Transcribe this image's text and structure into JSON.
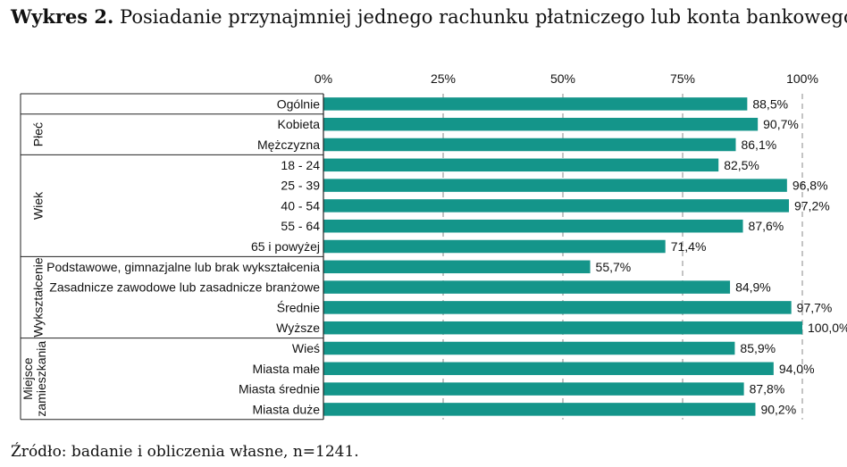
{
  "figure": {
    "title_prefix": "Wykres 2.",
    "title_text": "Posiadanie przynajmniej jednego rachunku płatniczego lub konta bankowego",
    "source": "Źródło: badanie i obliczenia własne, n=1241."
  },
  "colors": {
    "bar": "#14958A",
    "grid": "#888888",
    "line": "#222222"
  },
  "chart_data": {
    "type": "bar",
    "orientation": "horizontal",
    "xlim": [
      0,
      100
    ],
    "x_ticks": [
      "0%",
      "25%",
      "50%",
      "75%",
      "100%"
    ],
    "x_tick_values": [
      0,
      25,
      50,
      75,
      100
    ],
    "grid": "vertical dashed",
    "groups": [
      {
        "name": "",
        "start": 0,
        "count": 1
      },
      {
        "name": "Płeć",
        "start": 1,
        "count": 2
      },
      {
        "name": "Wiek",
        "start": 3,
        "count": 5
      },
      {
        "name": "Wykształcenie",
        "start": 8,
        "count": 4
      },
      {
        "name": "Miejsce zamieszkania",
        "start": 12,
        "count": 4
      }
    ],
    "categories": [
      "Ogólnie",
      "Kobieta",
      "Mężczyzna",
      "18 - 24",
      "25 - 39",
      "40 - 54",
      "55 - 64",
      "65 i powyżej",
      "Podstawowe, gimnazjalne lub brak wykształcenia",
      "Zasadnicze zawodowe lub zasadnicze branżowe",
      "Średnie",
      "Wyższe",
      "Wieś",
      "Miasta małe",
      "Miasta średnie",
      "Miasta duże"
    ],
    "values": [
      88.5,
      90.7,
      86.1,
      82.5,
      96.8,
      97.2,
      87.6,
      71.4,
      55.7,
      84.9,
      97.7,
      100.0,
      85.9,
      94.0,
      87.8,
      90.2
    ],
    "labels": [
      "88,5%",
      "90,7%",
      "86,1%",
      "82,5%",
      "96,8%",
      "97,2%",
      "87,6%",
      "71,4%",
      "55,7%",
      "84,9%",
      "97,7%",
      "100,0%",
      "85,9%",
      "94,0%",
      "87,8%",
      "90,2%"
    ]
  }
}
